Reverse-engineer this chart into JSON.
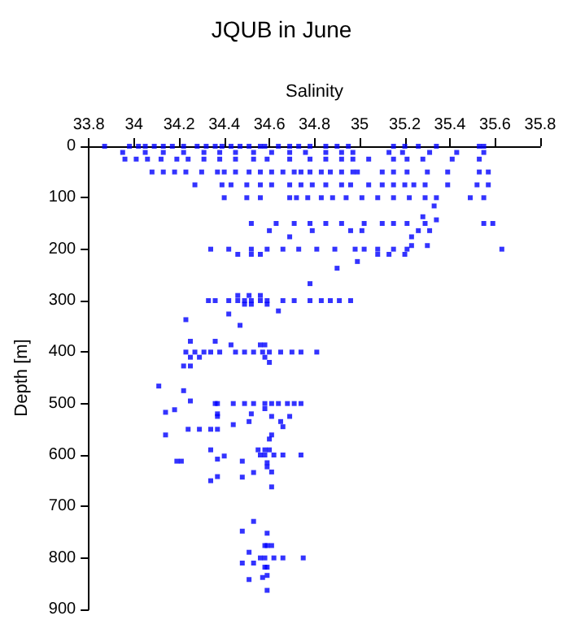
{
  "chart_data": {
    "type": "scatter",
    "title": "JQUB in June",
    "xlabel": "Salinity",
    "ylabel": "Depth [m]",
    "xlim": [
      33.8,
      35.8
    ],
    "xticks": [
      33.8,
      34,
      34.2,
      34.4,
      34.6,
      34.8,
      35,
      35.2,
      35.4,
      35.6,
      35.8
    ],
    "ylim": [
      900,
      0
    ],
    "yticks": [
      0,
      100,
      200,
      300,
      400,
      500,
      600,
      700,
      800,
      900
    ],
    "marker": "square",
    "series": [
      {
        "color": "#0000ff",
        "x": [
          33.87,
          33.98,
          34.02,
          34.05,
          34.09,
          34.13,
          34.17,
          34.22,
          34.28,
          34.32,
          34.36,
          34.39,
          34.43,
          34.47,
          34.51,
          34.56,
          34.58,
          34.64,
          34.69,
          34.73,
          34.78,
          34.85,
          34.9,
          34.95,
          35.15,
          35.2,
          35.26,
          35.34,
          35.53,
          35.55,
          33.95,
          34.05,
          34.13,
          34.22,
          34.31,
          34.38,
          34.45,
          34.53,
          34.61,
          34.69,
          34.76,
          34.85,
          34.92,
          34.97,
          35.13,
          35.19,
          35.31,
          35.43,
          35.55,
          33.96,
          34.01,
          34.06,
          34.12,
          34.19,
          34.24,
          34.31,
          34.38,
          34.45,
          34.53,
          34.59,
          34.69,
          34.78,
          34.85,
          34.92,
          34.97,
          35.04,
          35.15,
          35.21,
          35.28,
          35.41,
          35.53,
          34.08,
          34.13,
          34.18,
          34.23,
          34.3,
          34.37,
          34.4,
          34.45,
          34.51,
          34.56,
          34.61,
          34.66,
          34.71,
          34.74,
          34.78,
          34.83,
          34.87,
          34.92,
          34.97,
          34.99,
          35.1,
          35.15,
          35.21,
          35.3,
          35.39,
          35.53,
          35.57,
          34.27,
          34.39,
          34.43,
          34.5,
          34.56,
          34.61,
          34.69,
          34.74,
          34.79,
          34.85,
          34.92,
          34.96,
          35.04,
          35.1,
          35.15,
          35.2,
          35.24,
          35.29,
          35.39,
          35.52,
          35.57,
          34.4,
          34.5,
          34.56,
          34.69,
          34.72,
          34.77,
          34.83,
          34.88,
          34.94,
          35.01,
          35.08,
          35.15,
          35.22,
          35.29,
          35.34,
          35.49,
          35.55,
          35.33,
          35.28,
          35.34,
          34.52,
          34.63,
          34.71,
          34.78,
          34.85,
          34.92,
          35.02,
          35.1,
          35.15,
          35.21,
          35.29,
          35.55,
          35.59,
          34.6,
          34.79,
          34.96,
          35.01,
          35.26,
          35.31,
          34.69,
          35.23,
          35.23,
          35.3,
          34.34,
          34.42,
          34.52,
          34.59,
          34.66,
          34.73,
          34.81,
          34.89,
          34.98,
          35.02,
          35.08,
          35.15,
          35.21,
          35.63,
          34.46,
          34.52,
          34.56,
          35.08,
          35.13,
          35.2,
          34.99,
          34.9,
          34.78,
          34.33,
          34.36,
          34.42,
          34.46,
          34.49,
          34.52,
          34.56,
          34.59,
          34.66,
          34.71,
          34.78,
          34.83,
          34.87,
          34.91,
          34.96,
          34.46,
          34.51,
          34.56,
          34.49,
          34.52,
          34.59,
          34.64,
          34.23,
          34.42,
          34.47,
          34.25,
          34.36,
          34.43,
          34.56,
          34.58,
          34.23,
          34.27,
          34.31,
          34.34,
          34.38,
          34.45,
          34.49,
          34.53,
          34.57,
          34.6,
          34.65,
          34.7,
          34.74,
          34.81,
          34.25,
          34.29,
          34.58,
          34.22,
          34.25,
          34.6,
          34.11,
          34.22,
          34.25,
          34.36,
          34.37,
          34.44,
          34.49,
          34.53,
          34.58,
          34.61,
          34.64,
          34.68,
          34.71,
          34.74,
          34.14,
          34.18,
          34.37,
          34.37,
          34.51,
          34.52,
          34.58,
          34.61,
          34.65,
          34.69,
          34.44,
          34.66,
          34.14,
          34.24,
          34.29,
          34.34,
          34.37,
          34.61,
          34.6,
          34.34,
          34.4,
          34.37,
          34.19,
          34.21,
          34.55,
          34.58,
          34.6,
          34.56,
          34.58,
          34.62,
          34.66,
          34.74,
          34.48,
          34.59,
          34.59,
          34.61,
          34.53,
          34.48,
          34.37,
          34.34,
          34.61,
          34.53,
          34.48,
          34.59,
          34.58,
          34.59,
          34.61,
          34.51,
          34.56,
          34.58,
          34.62,
          34.66,
          34.75,
          34.48,
          34.53,
          34.58,
          34.59,
          34.51,
          34.57,
          34.59,
          34.59
        ],
        "values": [
          0,
          0,
          0,
          0,
          0,
          0,
          0,
          0,
          0,
          0,
          0,
          0,
          0,
          0,
          0,
          0,
          0,
          0,
          0,
          0,
          0,
          0,
          0,
          0,
          0,
          0,
          0,
          0,
          0,
          0,
          12,
          12,
          12,
          12,
          12,
          12,
          12,
          12,
          12,
          12,
          12,
          12,
          12,
          12,
          12,
          12,
          12,
          12,
          12,
          25,
          25,
          25,
          25,
          25,
          25,
          25,
          25,
          25,
          25,
          25,
          25,
          25,
          25,
          25,
          25,
          25,
          25,
          25,
          25,
          25,
          25,
          50,
          50,
          50,
          50,
          50,
          50,
          50,
          50,
          50,
          50,
          50,
          50,
          50,
          50,
          50,
          50,
          50,
          50,
          50,
          50,
          50,
          50,
          50,
          50,
          50,
          50,
          50,
          75,
          75,
          75,
          75,
          75,
          75,
          75,
          75,
          75,
          75,
          75,
          75,
          75,
          75,
          75,
          75,
          75,
          75,
          75,
          75,
          75,
          100,
          100,
          100,
          100,
          100,
          100,
          100,
          100,
          100,
          100,
          100,
          100,
          100,
          100,
          100,
          100,
          100,
          116,
          137,
          143,
          150,
          150,
          150,
          150,
          150,
          150,
          150,
          150,
          150,
          150,
          150,
          150,
          150,
          164,
          164,
          164,
          164,
          164,
          164,
          176,
          176,
          193,
          193,
          200,
          200,
          200,
          200,
          200,
          200,
          200,
          200,
          200,
          200,
          200,
          200,
          200,
          200,
          210,
          210,
          210,
          210,
          210,
          210,
          224,
          237,
          267,
          300,
          300,
          300,
          300,
          300,
          300,
          300,
          300,
          300,
          300,
          300,
          300,
          300,
          300,
          300,
          290,
          290,
          290,
          307,
          307,
          307,
          320,
          337,
          326,
          348,
          379,
          379,
          386,
          386,
          386,
          400,
          400,
          400,
          400,
          400,
          400,
          400,
          400,
          400,
          400,
          400,
          400,
          400,
          400,
          410,
          410,
          410,
          427,
          427,
          420,
          466,
          475,
          495,
          500,
          500,
          500,
          500,
          500,
          500,
          500,
          500,
          500,
          500,
          500,
          517,
          512,
          520,
          525,
          535,
          520,
          510,
          525,
          535,
          525,
          541,
          545,
          561,
          550,
          550,
          550,
          550,
          561,
          569,
          590,
          602,
          608,
          612,
          612,
          590,
          590,
          590,
          600,
          600,
          600,
          600,
          600,
          612,
          615,
          623,
          633,
          634,
          643,
          642,
          650,
          662,
          729,
          748,
          752,
          776,
          776,
          776,
          789,
          800,
          800,
          800,
          800,
          800,
          810,
          810,
          818,
          818,
          842,
          838,
          834,
          863
        ]
      }
    ]
  }
}
